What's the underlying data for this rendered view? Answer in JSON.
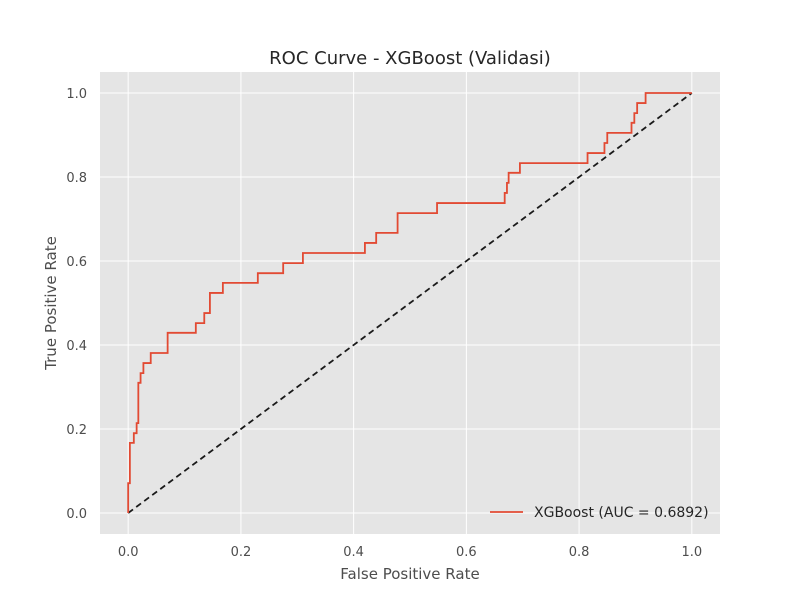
{
  "chart_data": {
    "type": "line",
    "title": "ROC Curve - XGBoost (Validasi)",
    "xlabel": "False Positive Rate",
    "ylabel": "True Positive Rate",
    "xlim": [
      -0.05,
      1.05
    ],
    "ylim": [
      -0.05,
      1.05
    ],
    "x_ticks": [
      0.0,
      0.2,
      0.4,
      0.6,
      0.8,
      1.0
    ],
    "y_ticks": [
      0.0,
      0.2,
      0.4,
      0.6,
      0.8,
      1.0
    ],
    "x_tick_labels": [
      "0.0",
      "0.2",
      "0.4",
      "0.6",
      "0.8",
      "1.0"
    ],
    "y_tick_labels": [
      "0.0",
      "0.2",
      "0.4",
      "0.6",
      "0.8",
      "1.0"
    ],
    "grid": true,
    "legend_position": "bottom-right",
    "background_color": "#e5e5e5",
    "series": [
      {
        "name": "XGBoost (AUC = 0.6892)",
        "color": "#e24a33",
        "style": "solid",
        "x": [
          0.0,
          0.0,
          0.003,
          0.003,
          0.01,
          0.01,
          0.015,
          0.015,
          0.018,
          0.018,
          0.022,
          0.022,
          0.027,
          0.027,
          0.03,
          0.03,
          0.04,
          0.04,
          0.07,
          0.07,
          0.12,
          0.12,
          0.135,
          0.135,
          0.145,
          0.145,
          0.168,
          0.168,
          0.23,
          0.23,
          0.275,
          0.275,
          0.31,
          0.31,
          0.42,
          0.42,
          0.44,
          0.44,
          0.478,
          0.478,
          0.548,
          0.548,
          0.668,
          0.668,
          0.672,
          0.672,
          0.675,
          0.675,
          0.695,
          0.695,
          0.815,
          0.815,
          0.845,
          0.845,
          0.85,
          0.85,
          0.893,
          0.893,
          0.898,
          0.898,
          0.903,
          0.903,
          0.918,
          0.918,
          1.0
        ],
        "y": [
          0.0,
          0.071,
          0.071,
          0.167,
          0.167,
          0.19,
          0.19,
          0.214,
          0.214,
          0.31,
          0.31,
          0.333,
          0.333,
          0.357,
          0.357,
          0.357,
          0.357,
          0.381,
          0.381,
          0.429,
          0.429,
          0.452,
          0.452,
          0.476,
          0.476,
          0.524,
          0.524,
          0.548,
          0.548,
          0.571,
          0.571,
          0.595,
          0.595,
          0.619,
          0.619,
          0.643,
          0.643,
          0.667,
          0.667,
          0.714,
          0.714,
          0.738,
          0.738,
          0.762,
          0.762,
          0.786,
          0.786,
          0.81,
          0.81,
          0.833,
          0.833,
          0.857,
          0.857,
          0.881,
          0.881,
          0.905,
          0.905,
          0.929,
          0.929,
          0.952,
          0.952,
          0.976,
          0.976,
          1.0,
          1.0
        ]
      },
      {
        "name": "",
        "color": "#1a1a1a",
        "style": "dashed",
        "x": [
          0.0,
          1.0
        ],
        "y": [
          0.0,
          1.0
        ]
      }
    ]
  }
}
